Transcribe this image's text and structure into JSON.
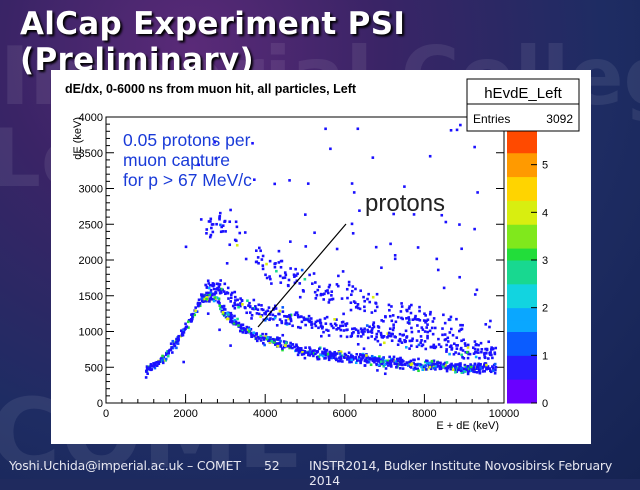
{
  "slide": {
    "title": "AlCap Experiment  PSI (Preliminary)",
    "footer_left": "Yoshi.Uchida@imperial.ac.uk – COMET",
    "footer_page": "52",
    "footer_right": "INSTR2014, Budker Institute Novosibirsk February 2014"
  },
  "annotation": {
    "line1": "0.05 protons per",
    "line2": "muon capture",
    "line3": "for p > 67 MeV/c",
    "arrow_label": "protons"
  },
  "stats_box": {
    "name": "hEvdE_Left",
    "entries_label": "Entries",
    "entries_value": "3092"
  },
  "colors": {
    "annotation": "#1a3bd8",
    "slide_bg": "#1f2a5e"
  },
  "chart_data": {
    "type": "heatmap",
    "title": "dE/dx, 0-6000 ns from muon hit, all particles, Left",
    "xlabel": "E + dE (keV)",
    "ylabel": "dE (keV)",
    "xlim": [
      0,
      10000
    ],
    "ylim": [
      0,
      4000
    ],
    "x_ticks": [
      "0",
      "2000",
      "4000",
      "6000",
      "8000",
      "10000"
    ],
    "y_ticks": [
      "0",
      "500",
      "1000",
      "1500",
      "2000",
      "2500",
      "3000",
      "3500",
      "4000"
    ],
    "z_ticks": [
      "0",
      "1",
      "2",
      "3",
      "4",
      "5"
    ],
    "zlim": [
      0,
      6
    ],
    "bands": [
      {
        "name": "",
        "points": [
          [
            1000,
            450
          ],
          [
            1500,
            650
          ],
          [
            2000,
            1050
          ],
          [
            2400,
            1450
          ],
          [
            2700,
            1500
          ],
          [
            3000,
            1250
          ],
          [
            3500,
            1000
          ],
          [
            4000,
            900
          ],
          [
            5000,
            720
          ],
          [
            6000,
            640
          ],
          [
            7000,
            580
          ],
          [
            8000,
            530
          ],
          [
            9000,
            500
          ],
          [
            9800,
            480
          ]
        ]
      },
      {
        "name": "",
        "points": [
          [
            2500,
            1700
          ],
          [
            3000,
            1550
          ],
          [
            3500,
            1350
          ],
          [
            4000,
            1250
          ],
          [
            5000,
            1150
          ],
          [
            6000,
            1050
          ],
          [
            7000,
            950
          ],
          [
            8000,
            850
          ],
          [
            9000,
            750
          ],
          [
            9800,
            700
          ]
        ]
      },
      {
        "name": "",
        "points": [
          [
            2500,
            2400
          ],
          [
            3000,
            2500
          ],
          [
            3500,
            2300
          ],
          [
            4000,
            1900
          ],
          [
            5000,
            1700
          ],
          [
            6000,
            1500
          ],
          [
            7000,
            1300
          ],
          [
            8000,
            1150
          ],
          [
            9000,
            1000
          ]
        ]
      }
    ]
  }
}
